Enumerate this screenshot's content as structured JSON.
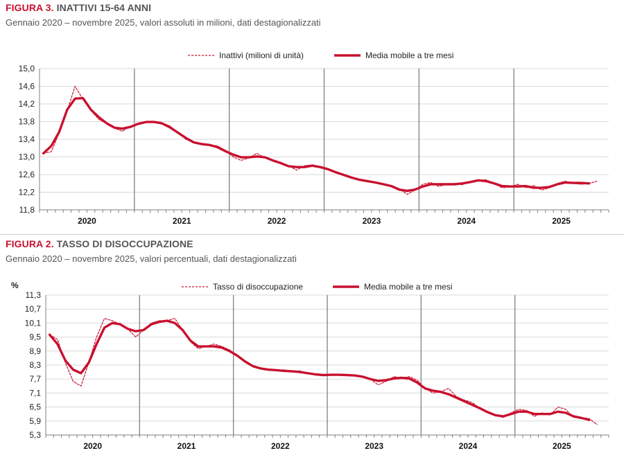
{
  "figures": [
    {
      "number": "FIGURA 3.",
      "title": "INATTIVI 15-64 ANNI",
      "subtitle": "Gennaio 2020 – novembre 2025, valori assoluti in milioni, dati destagionalizzati"
    },
    {
      "number": "FIGURA 2.",
      "title": "TASSO DI DISOCCUPAZIONE",
      "subtitle": "Gennaio 2020 – novembre 2025, valori percentuali, dati destagionalizzati"
    }
  ],
  "colors": {
    "series": "#c8102e",
    "grid": "#d9d9d9",
    "year_divider": "#808080",
    "axis": "#7f7f7f"
  },
  "chart_data": [
    {
      "type": "line",
      "title": "INATTIVI 15-64 ANNI",
      "ylabel": "",
      "ylim": [
        11.8,
        15.0
      ],
      "yticks": [
        "15,0",
        "14,6",
        "14,2",
        "13,8",
        "13,4",
        "13,0",
        "12,6",
        "12,2",
        "11,8"
      ],
      "years": [
        "2020",
        "2021",
        "2022",
        "2023",
        "2024",
        "2025"
      ],
      "x_start": "2020-01",
      "x_end": "2025-11",
      "series": [
        {
          "name": "Inattivi (milioni di unità)",
          "style": "dashed",
          "values": [
            13.08,
            13.12,
            13.55,
            14.05,
            14.6,
            14.3,
            14.05,
            13.85,
            13.75,
            13.65,
            13.58,
            13.7,
            13.75,
            13.8,
            13.8,
            13.77,
            13.7,
            13.55,
            13.4,
            13.32,
            13.28,
            13.27,
            13.25,
            13.15,
            13.0,
            12.92,
            12.98,
            13.08,
            12.98,
            12.92,
            12.85,
            12.8,
            12.7,
            12.8,
            12.82,
            12.78,
            12.72,
            12.65,
            12.58,
            12.52,
            12.48,
            12.45,
            12.42,
            12.38,
            12.35,
            12.28,
            12.15,
            12.25,
            12.38,
            12.42,
            12.33,
            12.38,
            12.4,
            12.37,
            12.45,
            12.47,
            12.48,
            12.4,
            12.3,
            12.32,
            12.38,
            12.3,
            12.35,
            12.25,
            12.3,
            12.4,
            12.45,
            12.4,
            12.38,
            12.4,
            12.45
          ]
        },
        {
          "name": "Media mobile a tre mesi",
          "style": "solid",
          "values": [
            13.08,
            13.25,
            13.57,
            14.07,
            14.32,
            14.33,
            14.07,
            13.9,
            13.76,
            13.66,
            13.64,
            13.68,
            13.75,
            13.79,
            13.79,
            13.76,
            13.67,
            13.55,
            13.43,
            13.33,
            13.29,
            13.27,
            13.22,
            13.13,
            13.05,
            12.99,
            12.99,
            13.01,
            12.99,
            12.92,
            12.86,
            12.79,
            12.77,
            12.77,
            12.8,
            12.77,
            12.72,
            12.65,
            12.59,
            12.53,
            12.48,
            12.45,
            12.42,
            12.38,
            12.34,
            12.26,
            12.23,
            12.26,
            12.33,
            12.38,
            12.38,
            12.38,
            12.38,
            12.4,
            12.43,
            12.47,
            12.45,
            12.4,
            12.34,
            12.33,
            12.33,
            12.34,
            12.3,
            12.3,
            12.32,
            12.38,
            12.42,
            12.41,
            12.41,
            12.4
          ]
        }
      ]
    },
    {
      "type": "line",
      "title": "TASSO DI DISOCCUPAZIONE",
      "ylabel": "%",
      "ylim": [
        5.3,
        11.3
      ],
      "yticks": [
        "11,3",
        "10,7",
        "10,1",
        "9,5",
        "8,9",
        "8,3",
        "7,7",
        "7,1",
        "6,5",
        "5,9",
        "5,3"
      ],
      "years": [
        "2020",
        "2021",
        "2022",
        "2023",
        "2024",
        "2025"
      ],
      "x_start": "2020-01",
      "x_end": "2025-11",
      "series": [
        {
          "name": "Tasso di disoccupazione",
          "style": "dashed",
          "values": [
            9.6,
            9.4,
            8.4,
            7.6,
            7.4,
            8.4,
            9.5,
            10.3,
            10.2,
            10.05,
            9.85,
            9.5,
            9.8,
            10.1,
            10.2,
            10.2,
            10.3,
            9.8,
            9.3,
            9.0,
            9.1,
            9.2,
            9.1,
            8.95,
            8.7,
            8.45,
            8.25,
            8.15,
            8.1,
            8.05,
            8.1,
            8.0,
            8.05,
            7.95,
            7.9,
            7.85,
            7.9,
            7.85,
            7.9,
            7.85,
            7.8,
            7.7,
            7.45,
            7.6,
            7.8,
            7.75,
            7.8,
            7.65,
            7.3,
            7.1,
            7.15,
            7.3,
            6.95,
            6.8,
            6.7,
            6.45,
            6.3,
            6.15,
            6.05,
            6.25,
            6.4,
            6.35,
            6.1,
            6.25,
            6.15,
            6.5,
            6.4,
            6.05,
            6.05,
            6.0,
            5.75
          ]
        },
        {
          "name": "Media mobile a tre mesi",
          "style": "solid",
          "values": [
            9.6,
            9.2,
            8.5,
            8.1,
            7.95,
            8.4,
            9.2,
            9.9,
            10.1,
            10.05,
            9.85,
            9.75,
            9.8,
            10.05,
            10.15,
            10.2,
            10.1,
            9.8,
            9.35,
            9.1,
            9.1,
            9.1,
            9.05,
            8.9,
            8.7,
            8.45,
            8.25,
            8.15,
            8.1,
            8.08,
            8.05,
            8.03,
            8.0,
            7.95,
            7.9,
            7.87,
            7.88,
            7.88,
            7.87,
            7.85,
            7.8,
            7.7,
            7.62,
            7.65,
            7.72,
            7.75,
            7.72,
            7.55,
            7.3,
            7.2,
            7.15,
            7.05,
            6.9,
            6.75,
            6.6,
            6.45,
            6.28,
            6.15,
            6.1,
            6.2,
            6.3,
            6.3,
            6.2,
            6.2,
            6.2,
            6.3,
            6.25,
            6.1,
            6.03,
            5.95
          ]
        }
      ]
    }
  ]
}
